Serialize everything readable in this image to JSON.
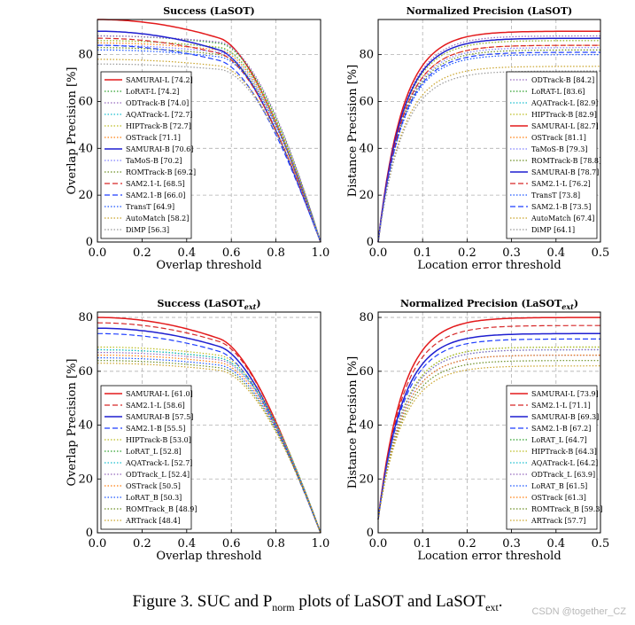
{
  "caption": {
    "prefix": "Figure 3. SUC and P",
    "sub": "norm",
    "middle": " plots of LaSOT and LaSOT",
    "sub2": "ext",
    "suffix": "."
  },
  "watermark": "CSDN @together_CZ",
  "chart_data": [
    {
      "id": "suc-lasot",
      "type": "line",
      "kind": "success",
      "title": "Success (LaSOT)",
      "xlabel": "Overlap threshold",
      "ylabel": "Overlap Precision [%]",
      "xlim": [
        0,
        1
      ],
      "ylim": [
        0,
        95
      ],
      "xticks": [
        "0.0",
        "0.2",
        "0.4",
        "0.6",
        "0.8",
        "1.0"
      ],
      "yticks": [
        "0",
        "20",
        "40",
        "60",
        "80"
      ],
      "grid": true,
      "legend_position": "lower-left",
      "series": [
        {
          "name": "SAMURAI-L",
          "score": "74.2",
          "color": "#e31a1c",
          "style": "solid",
          "start": 95,
          "b": 0.28
        },
        {
          "name": "LoRAT-L",
          "score": "74.2",
          "color": "#2ca02c",
          "style": "dotted",
          "start": 88,
          "b": 0.12
        },
        {
          "name": "ODTrack-B",
          "score": "74.0",
          "color": "#9467bd",
          "style": "dotted",
          "start": 88,
          "b": 0.1
        },
        {
          "name": "AQATrack-L",
          "score": "72.7",
          "color": "#17becf",
          "style": "dotted",
          "start": 86,
          "b": 0.12
        },
        {
          "name": "HIPTrack-B",
          "score": "72.7",
          "color": "#bcbd22",
          "style": "dotted",
          "start": 86,
          "b": 0.11
        },
        {
          "name": "OSTrack",
          "score": "71.1",
          "color": "#ff7f0e",
          "style": "dotted",
          "start": 85,
          "b": 0.12
        },
        {
          "name": "SAMURAI-B",
          "score": "70.6",
          "color": "#1f1fd0",
          "style": "solid",
          "start": 90,
          "b": 0.3
        },
        {
          "name": "TaMoS-B",
          "score": "70.2",
          "color": "#7f7fff",
          "style": "dotted",
          "start": 84,
          "b": 0.12
        },
        {
          "name": "ROMTrack-B",
          "score": "69.2",
          "color": "#6b8e23",
          "style": "dotted",
          "start": 83,
          "b": 0.12
        },
        {
          "name": "SAM2.1-L",
          "score": "68.5",
          "color": "#d62728",
          "style": "dashed",
          "start": 87,
          "b": 0.25
        },
        {
          "name": "SAM2.1-B",
          "score": "66.0",
          "color": "#1f3fff",
          "style": "dashed",
          "start": 84,
          "b": 0.26
        },
        {
          "name": "TransT",
          "score": "64.9",
          "color": "#1a55ff",
          "style": "dotted",
          "start": 82,
          "b": 0.12
        },
        {
          "name": "AutoMatch",
          "score": "58.2",
          "color": "#c9a227",
          "style": "dotted",
          "start": 78,
          "b": 0.12
        },
        {
          "name": "DiMP",
          "score": "56.3",
          "color": "#999999",
          "style": "dotted",
          "start": 76,
          "b": 0.1
        }
      ]
    },
    {
      "id": "np-lasot",
      "type": "line",
      "kind": "precision",
      "title": "Normalized Precision (LaSOT)",
      "xlabel": "Location error threshold",
      "ylabel": "Distance Precision [%]",
      "xlim": [
        0,
        0.5
      ],
      "ylim": [
        0,
        95
      ],
      "xticks": [
        "0.0",
        "0.1",
        "0.2",
        "0.3",
        "0.4",
        "0.5"
      ],
      "yticks": [
        "0",
        "20",
        "40",
        "60",
        "80"
      ],
      "grid": true,
      "legend_position": "lower-right",
      "series": [
        {
          "name": "ODTrack-B",
          "score": "84.2",
          "color": "#9467bd",
          "style": "dotted",
          "start": 0,
          "end": 88
        },
        {
          "name": "LoRAT-L",
          "score": "83.6",
          "color": "#2ca02c",
          "style": "dotted",
          "start": 0,
          "end": 87
        },
        {
          "name": "AQATrack-L",
          "score": "82.9",
          "color": "#17becf",
          "style": "dotted",
          "start": 0,
          "end": 86
        },
        {
          "name": "HIPTrack-B",
          "score": "82.9",
          "color": "#bcbd22",
          "style": "dotted",
          "start": 0,
          "end": 86
        },
        {
          "name": "SAMURAI-L",
          "score": "82.7",
          "color": "#e31a1c",
          "style": "solid",
          "start": 0,
          "end": 90
        },
        {
          "name": "OSTrack",
          "score": "81.1",
          "color": "#ff7f0e",
          "style": "dotted",
          "start": 0,
          "end": 84
        },
        {
          "name": "TaMoS-B",
          "score": "79.3",
          "color": "#7f7fff",
          "style": "dotted",
          "start": 0,
          "end": 83
        },
        {
          "name": "ROMTrack-B",
          "score": "78.8",
          "color": "#6b8e23",
          "style": "dotted",
          "start": 0,
          "end": 82
        },
        {
          "name": "SAMURAI-B",
          "score": "78.7",
          "color": "#1f1fd0",
          "style": "solid",
          "start": 0,
          "end": 87
        },
        {
          "name": "SAM2.1-L",
          "score": "76.2",
          "color": "#d62728",
          "style": "dashed",
          "start": 0,
          "end": 84
        },
        {
          "name": "TransT",
          "score": "73.8",
          "color": "#1a55ff",
          "style": "dotted",
          "start": 0,
          "end": 80
        },
        {
          "name": "SAM2.1-B",
          "score": "73.5",
          "color": "#1f3fff",
          "style": "dashed",
          "start": 0,
          "end": 81
        },
        {
          "name": "AutoMatch",
          "score": "67.4",
          "color": "#c9a227",
          "style": "dotted",
          "start": 0,
          "end": 75
        },
        {
          "name": "DiMP",
          "score": "64.1",
          "color": "#999999",
          "style": "dotted",
          "start": 0,
          "end": 73
        }
      ]
    },
    {
      "id": "suc-lasotext",
      "type": "line",
      "kind": "success",
      "title": "Success (LaSOT",
      "title_sub": "ext",
      "title_end": ")",
      "xlabel": "Overlap threshold",
      "ylabel": "Overlap Precision [%]",
      "xlim": [
        0,
        1
      ],
      "ylim": [
        0,
        82
      ],
      "xticks": [
        "0.0",
        "0.2",
        "0.4",
        "0.6",
        "0.8",
        "1.0"
      ],
      "yticks": [
        "0",
        "20",
        "40",
        "60",
        "80"
      ],
      "grid": true,
      "legend_position": "lower-left",
      "series": [
        {
          "name": "SAMURAI-L",
          "score": "61.0",
          "color": "#e31a1c",
          "style": "solid",
          "start": 80,
          "b": 0.33
        },
        {
          "name": "SAM2.1-L",
          "score": "58.6",
          "color": "#d62728",
          "style": "dashed",
          "start": 78,
          "b": 0.3
        },
        {
          "name": "SAMURAI-B",
          "score": "57.5",
          "color": "#1f1fd0",
          "style": "solid",
          "start": 76,
          "b": 0.3
        },
        {
          "name": "SAM2.1-B",
          "score": "55.5",
          "color": "#1f3fff",
          "style": "dashed",
          "start": 74,
          "b": 0.3
        },
        {
          "name": "HIPTrack-B",
          "score": "53.0",
          "color": "#bcbd22",
          "style": "dotted",
          "start": 69,
          "b": 0.15
        },
        {
          "name": "LoRAT_L",
          "score": "52.8",
          "color": "#2ca02c",
          "style": "dotted",
          "start": 68,
          "b": 0.15
        },
        {
          "name": "AQATrack-L",
          "score": "52.7",
          "color": "#17becf",
          "style": "dotted",
          "start": 68,
          "b": 0.15
        },
        {
          "name": "ODTrack_L",
          "score": "52.4",
          "color": "#9467bd",
          "style": "dotted",
          "start": 67,
          "b": 0.14
        },
        {
          "name": "OSTrack",
          "score": "50.5",
          "color": "#ff7f0e",
          "style": "dotted",
          "start": 66,
          "b": 0.14
        },
        {
          "name": "LoRAT_B",
          "score": "50.3",
          "color": "#1a55ff",
          "style": "dotted",
          "start": 65,
          "b": 0.14
        },
        {
          "name": "ROMTrack_B",
          "score": "48.9",
          "color": "#6b8e23",
          "style": "dotted",
          "start": 64,
          "b": 0.14
        },
        {
          "name": "ARTrack",
          "score": "48.4",
          "color": "#c9a227",
          "style": "dotted",
          "start": 63,
          "b": 0.14
        }
      ]
    },
    {
      "id": "np-lasotext",
      "type": "line",
      "kind": "precision",
      "title": "Normalized Precision (LaSOT",
      "title_sub": "ext",
      "title_end": ")",
      "xlabel": "Location error threshold",
      "ylabel": "Distance Precision [%]",
      "xlim": [
        0,
        0.5
      ],
      "ylim": [
        0,
        82
      ],
      "xticks": [
        "0.0",
        "0.1",
        "0.2",
        "0.3",
        "0.4",
        "0.5"
      ],
      "yticks": [
        "0",
        "20",
        "40",
        "60",
        "80"
      ],
      "grid": true,
      "legend_position": "lower-right",
      "series": [
        {
          "name": "SAMURAI-L",
          "score": "73.9",
          "color": "#e31a1c",
          "style": "solid",
          "start": 5,
          "end": 80
        },
        {
          "name": "SAM2.1-L",
          "score": "71.1",
          "color": "#d62728",
          "style": "dashed",
          "start": 5,
          "end": 77
        },
        {
          "name": "SAMURAI-B",
          "score": "69.3",
          "color": "#1f1fd0",
          "style": "solid",
          "start": 5,
          "end": 74
        },
        {
          "name": "SAM2.1-B",
          "score": "67.2",
          "color": "#1f3fff",
          "style": "dashed",
          "start": 5,
          "end": 72
        },
        {
          "name": "LoRAT_L",
          "score": "64.7",
          "color": "#2ca02c",
          "style": "dotted",
          "start": 5,
          "end": 69
        },
        {
          "name": "HIPTrack-B",
          "score": "64.3",
          "color": "#bcbd22",
          "style": "dotted",
          "start": 5,
          "end": 69
        },
        {
          "name": "AQATrack-L",
          "score": "64.2",
          "color": "#17becf",
          "style": "dotted",
          "start": 5,
          "end": 68
        },
        {
          "name": "ODTrack_L",
          "score": "63.9",
          "color": "#9467bd",
          "style": "dotted",
          "start": 5,
          "end": 68
        },
        {
          "name": "LoRAT_B",
          "score": "61.5",
          "color": "#1a55ff",
          "style": "dotted",
          "start": 5,
          "end": 66
        },
        {
          "name": "OSTrack",
          "score": "61.3",
          "color": "#ff7f0e",
          "style": "dotted",
          "start": 5,
          "end": 66
        },
        {
          "name": "ROMTrack_B",
          "score": "59.3",
          "color": "#6b8e23",
          "style": "dotted",
          "start": 5,
          "end": 64
        },
        {
          "name": "ARTrack",
          "score": "57.7",
          "color": "#c9a227",
          "style": "dotted",
          "start": 5,
          "end": 62
        }
      ]
    }
  ]
}
